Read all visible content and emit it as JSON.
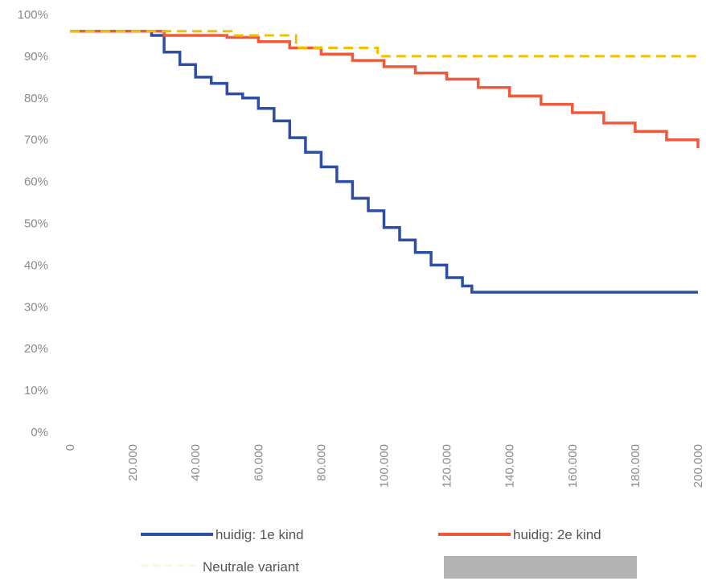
{
  "chart_data": {
    "type": "line",
    "title": "",
    "xlabel": "",
    "ylabel": "",
    "xlim": [
      0,
      200000
    ],
    "ylim": [
      0,
      100
    ],
    "x_ticks": [
      0,
      20000,
      40000,
      60000,
      80000,
      100000,
      120000,
      140000,
      160000,
      180000,
      200000
    ],
    "x_tick_labels": [
      "0",
      "20.000",
      "40.000",
      "60.000",
      "80.000",
      "100.000",
      "120.000",
      "140.000",
      "160.000",
      "180.000",
      "200.000"
    ],
    "y_ticks": [
      0,
      10,
      20,
      30,
      40,
      50,
      60,
      70,
      80,
      90,
      100
    ],
    "y_tick_labels": [
      "0%",
      "10%",
      "20%",
      "30%",
      "40%",
      "50%",
      "60%",
      "70%",
      "80%",
      "90%",
      "100%"
    ],
    "grid": false,
    "legend_position": "bottom",
    "series": [
      {
        "name": "huidig: 1e kind",
        "color": "#2e4ea3",
        "style": "solid",
        "x": [
          0,
          25000,
          26000,
          30000,
          35000,
          40000,
          45000,
          50000,
          55000,
          60000,
          65000,
          70000,
          75000,
          80000,
          85000,
          90000,
          95000,
          100000,
          105000,
          110000,
          115000,
          120000,
          125000,
          128000,
          140000,
          160000,
          180000,
          200000
        ],
        "y": [
          96,
          96,
          95,
          91,
          88,
          85,
          83.5,
          81,
          80,
          77.5,
          74.5,
          70.5,
          67,
          63.5,
          60,
          56,
          53,
          49,
          46,
          43,
          40,
          37,
          35,
          33.5,
          33.5,
          33.5,
          33.5,
          33.5
        ]
      },
      {
        "name": "huidig: 2e kind",
        "color": "#f05a3c",
        "style": "solid",
        "x": [
          0,
          25000,
          30000,
          40000,
          50000,
          60000,
          70000,
          80000,
          90000,
          100000,
          110000,
          120000,
          130000,
          140000,
          150000,
          160000,
          170000,
          180000,
          190000,
          200000
        ],
        "y": [
          96,
          96,
          95,
          95,
          94.5,
          93.5,
          92,
          90.5,
          89,
          87.5,
          86,
          84.5,
          82.5,
          80.5,
          78.5,
          76.5,
          74,
          72,
          70,
          68
        ]
      },
      {
        "name": "Neutrale variant",
        "color": "#f0c000",
        "style": "dashed",
        "x": [
          0,
          52000,
          52000,
          72000,
          72000,
          98000,
          98000,
          200000
        ],
        "y": [
          96,
          96,
          95,
          95,
          92,
          92,
          90,
          90
        ]
      }
    ]
  },
  "legend": {
    "item_1": "huidig: 1e kind",
    "item_2": "huidig: 2e kind",
    "item_3": "Neutrale variant",
    "item_4_color": "#b3b3b3"
  }
}
